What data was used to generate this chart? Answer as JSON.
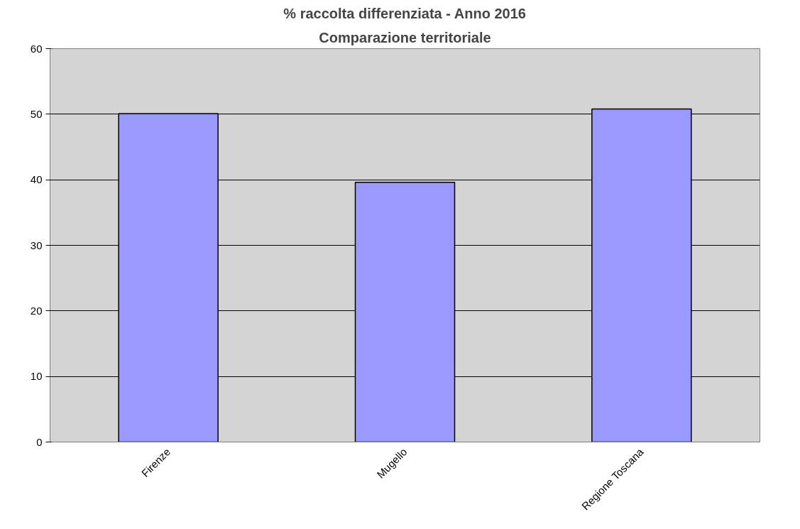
{
  "chart_data": {
    "type": "bar",
    "title": "% raccolta differenziata - Anno 2016",
    "subtitle": "Comparazione territoriale",
    "categories": [
      "Firenze",
      "Mugello",
      "Regione Toscana"
    ],
    "values": [
      50.1,
      39.6,
      50.8
    ],
    "color": "#9999ff",
    "ylim": [
      0,
      60
    ],
    "yticks": [
      0,
      10,
      20,
      30,
      40,
      50,
      60
    ],
    "grid": "y"
  }
}
